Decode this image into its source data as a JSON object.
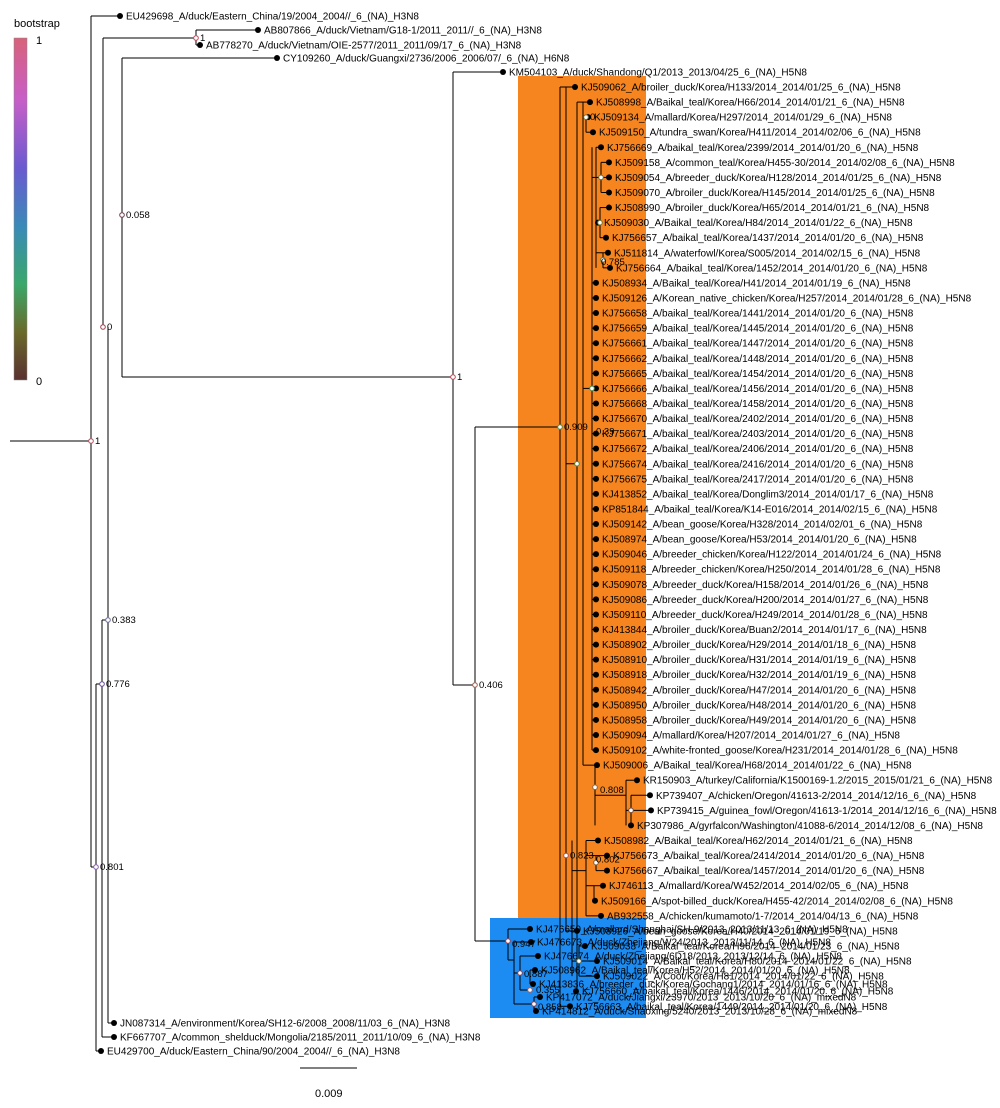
{
  "legend": {
    "title": "bootstrap",
    "max_label": "1",
    "min_label": "0",
    "gradient_colors": [
      "#d8627a",
      "#c85ec8",
      "#6a5ad0",
      "#3a8ab8",
      "#3aa86a",
      "#6a6a2a",
      "#5a3030"
    ]
  },
  "scale_bar": {
    "label": "0.009",
    "value": 0.009
  },
  "clade_colors": {
    "orange": "#f6841f",
    "blue": "#1d8cf2"
  },
  "top_leaves": [
    "EU429698_A/duck/Eastern_China/19/2004_2004//_6_(NA)_H3N8",
    "AB807866_A/duck/Vietnam/G18-1/2011_2011//_6_(NA)_H3N8",
    "AB778270_A/duck/Vietnam/OIE-2577/2011_2011/09/17_6_(NA)_H3N8",
    "CY109260_A/duck/Guangxi/2736/2006_2006/07/_6_(NA)_H6N8",
    "KM504103_A/duck/Shandong/Q1/2013_2013/04/25_6_(NA)_H5N8"
  ],
  "orange_leaves": [
    "KJ509062_A/broiler_duck/Korea/H133/2014_2014/01/25_6_(NA)_H5N8",
    "KJ508998_A/Baikal_teal/Korea/H66/2014_2014/01/21_6_(NA)_H5N8",
    "KJ509134_A/mallard/Korea/H297/2014_2014/01/29_6_(NA)_H5N8",
    "KJ509150_A/tundra_swan/Korea/H411/2014_2014/02/06_6_(NA)_H5N8",
    "KJ756669_A/baikal_teal/Korea/2399/2014_2014/01/20_6_(NA)_H5N8",
    "KJ509158_A/common_teal/Korea/H455-30/2014_2014/02/08_6_(NA)_H5N8",
    "KJ509054_A/breeder_duck/Korea/H128/2014_2014/01/25_6_(NA)_H5N8",
    "KJ509070_A/broiler_duck/Korea/H145/2014_2014/01/25_6_(NA)_H5N8",
    "KJ508990_A/broiler_duck/Korea/H65/2014_2014/01/21_6_(NA)_H5N8",
    "KJ509030_A/Baikal_teal/Korea/H84/2014_2014/01/22_6_(NA)_H5N8",
    "KJ756657_A/baikal_teal/Korea/1437/2014_2014/01/20_6_(NA)_H5N8",
    "KJ511814_A/waterfowl/Korea/S005/2014_2014/02/15_6_(NA)_H5N8",
    "KJ756664_A/baikal_teal/Korea/1452/2014_2014/01/20_6_(NA)_H5N8",
    "KJ508934_A/Baikal_teal/Korea/H41/2014_2014/01/19_6_(NA)_H5N8",
    "KJ509126_A/Korean_native_chicken/Korea/H257/2014_2014/01/28_6_(NA)_H5N8",
    "KJ756658_A/baikal_teal/Korea/1441/2014_2014/01/20_6_(NA)_H5N8",
    "KJ756659_A/baikal_teal/Korea/1445/2014_2014/01/20_6_(NA)_H5N8",
    "KJ756661_A/baikal_teal/Korea/1447/2014_2014/01/20_6_(NA)_H5N8",
    "KJ756662_A/baikal_teal/Korea/1448/2014_2014/01/20_6_(NA)_H5N8",
    "KJ756665_A/baikal_teal/Korea/1454/2014_2014/01/20_6_(NA)_H5N8",
    "KJ756666_A/baikal_teal/Korea/1456/2014_2014/01/20_6_(NA)_H5N8",
    "KJ756668_A/baikal_teal/Korea/1458/2014_2014/01/20_6_(NA)_H5N8",
    "KJ756670_A/baikal_teal/Korea/2402/2014_2014/01/20_6_(NA)_H5N8",
    "KJ756671_A/baikal_teal/Korea/2403/2014_2014/01/20_6_(NA)_H5N8",
    "KJ756672_A/baikal_teal/Korea/2406/2014_2014/01/20_6_(NA)_H5N8",
    "KJ756674_A/baikal_teal/Korea/2416/2014_2014/01/20_6_(NA)_H5N8",
    "KJ756675_A/baikal_teal/Korea/2417/2014_2014/01/20_6_(NA)_H5N8",
    "KJ413852_A/baikal_teal/Korea/Donglim3/2014_2014/01/17_6_(NA)_H5N8",
    "KP851844_A/baikal_teal/Korea/K14-E016/2014_2014/02/15_6_(NA)_H5N8",
    "KJ509142_A/bean_goose/Korea/H328/2014_2014/02/01_6_(NA)_H5N8",
    "KJ508974_A/bean_goose/Korea/H53/2014_2014/01/20_6_(NA)_H5N8",
    "KJ509046_A/breeder_chicken/Korea/H122/2014_2014/01/24_6_(NA)_H5N8",
    "KJ509118_A/breeder_chicken/Korea/H250/2014_2014/01/28_6_(NA)_H5N8",
    "KJ509078_A/breeder_duck/Korea/H158/2014_2014/01/26_6_(NA)_H5N8",
    "KJ509086_A/breeder_duck/Korea/H200/2014_2014/01/27_6_(NA)_H5N8",
    "KJ509110_A/breeder_duck/Korea/H249/2014_2014/01/28_6_(NA)_H5N8",
    "KJ413844_A/broiler_duck/Korea/Buan2/2014_2014/01/17_6_(NA)_H5N8",
    "KJ508902_A/broiler_duck/Korea/H29/2014_2014/01/18_6_(NA)_H5N8",
    "KJ508910_A/broiler_duck/Korea/H31/2014_2014/01/19_6_(NA)_H5N8",
    "KJ508918_A/broiler_duck/Korea/H32/2014_2014/01/19_6_(NA)_H5N8",
    "KJ508942_A/broiler_duck/Korea/H47/2014_2014/01/20_6_(NA)_H5N8",
    "KJ508950_A/broiler_duck/Korea/H48/2014_2014/01/20_6_(NA)_H5N8",
    "KJ508958_A/broiler_duck/Korea/H49/2014_2014/01/20_6_(NA)_H5N8",
    "KJ509094_A/mallard/Korea/H207/2014_2014/01/27_6_(NA)_H5N8",
    "KJ509102_A/white-fronted_goose/Korea/H231/2014_2014/01/28_6_(NA)_H5N8",
    "KJ509006_A/Baikal_teal/Korea/H68/2014_2014/01/22_6_(NA)_H5N8",
    "KR150903_A/turkey/California/K1500169-1.2/2015_2015/01/21_6_(NA)_H5N8",
    "KP739407_A/chicken/Oregon/41613-2/2014_2014/12/16_6_(NA)_H5N8",
    "KP739415_A/guinea_fowl/Oregon/41613-1/2014_2014/12/16_6_(NA)_H5N8",
    "KP307986_A/gyrfalcon/Washington/41088-6/2014_2014/12/08_6_(NA)_H5N8",
    "KJ508982_A/Baikal_teal/Korea/H62/2014_2014/01/21_6_(NA)_H5N8",
    "KJ756673_A/baikal_teal/Korea/2414/2014_2014/01/20_6_(NA)_H5N8",
    "KJ756667_A/baikal_teal/Korea/1457/2014_2014/01/20_6_(NA)_H5N8",
    "KJ746113_A/mallard/Korea/W452/2014_2014/02/05_6_(NA)_H5N8",
    "KJ509166_A/spot-billed_duck/Korea/H455-42/2014_2014/02/08_6_(NA)_H5N8",
    "AB932558_A/chicken/kumamoto/1-7/2014_2014/04/13_6_(NA)_H5N8",
    "KJ508926_A/bean_goose/Korea/H40/2014_2014/01/19_6_(NA)_H5N8",
    "KJ509038_A/Baikal_teal/Korea/H96/2014_2014/01/23_6_(NA)_H5N8",
    "KJ509014_A/Baikal_teal/Korea/H80/2014_2014/01/22_6_(NA)_H5N8",
    "KJ509022_A/Coot/Korea/H81/2014_2014/01/22_6_(NA)_H5N8",
    "KJ756660_A/baikal_teal/Korea/1446/2014_2014/01/20_6_(NA)_H5N8",
    "KJ756663_A/baikal_teal/Korea/1449/2014_2014/01/20_6_(NA)_H5N8"
  ],
  "blue_leaves": [
    "KJ476659_A/mallard/Shanghai/SH-9/2013_2013/11/13_6_(NA)_H5N8",
    "KJ476673_A/duck/Zhejiang/W24/2013_2013/11/14_6_(NA)_H5N8",
    "KJ476674_A/duck/Zhejiang/6D18/2013_2013/12/14_6_(NA)_H5N8",
    "KJ508962_A/Baikal_teal/Korea/H52/2014_2014/01/20_6_(NA)_H5N8",
    "KJ413836_A/breeder_duck/Korea/Gochang1/2014_2014/01/16_6_(NA)_H5N8",
    "KP417072_A/duck/Jiangxi/23970/2013_2013/10/20_6_(NA)_mixedN8",
    "KP414812_A/duck/Shaoxing/5240/2013_2013/10/28_6_(NA)_mixedN8"
  ],
  "bottom_leaves": [
    "JN087314_A/environment/Korea/SH12-6/2008_2008/11/03_6_(NA)_H3N8",
    "KF667707_A/common_shelduck/Mongolia/2185/2011_2011/10/09_6_(NA)_H3N8",
    "EU429700_A/duck/Eastern_China/90/2004_2004//_6_(NA)_H3N8"
  ],
  "node_labels": [
    "1",
    "0.058",
    "0",
    "1",
    "1",
    "0.383",
    "0.776",
    "0.801",
    "0.406",
    "0.909",
    "0.39",
    "0.808",
    "0.823",
    "0.802",
    "0.887",
    "0.355",
    "0.858",
    "0.947",
    "0",
    "0",
    "0.785"
  ]
}
